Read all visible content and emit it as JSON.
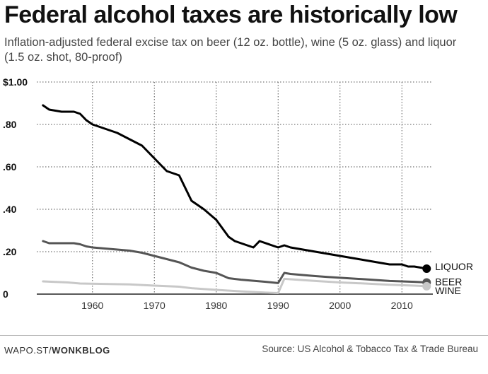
{
  "header": {
    "title": "Federal alcohol taxes are historically low",
    "subtitle": "Inflation-adjusted federal excise tax on beer (12 oz. bottle), wine (5 oz. glass) and liquor (1.5 oz. shot, 80-proof)"
  },
  "footer": {
    "credit_prefix": "WAPO.ST/",
    "credit_brand": "WONKBLOG",
    "source": "Source: US Alcohol & Tobacco Tax & Trade Bureau"
  },
  "chart_data": {
    "type": "line",
    "title": "Federal alcohol taxes are historically low",
    "xlabel": "",
    "ylabel": "",
    "xlim": [
      1951,
      2015
    ],
    "ylim": [
      0,
      1.0
    ],
    "grid": true,
    "x_ticks": [
      1960,
      1970,
      1980,
      1990,
      2000,
      2010
    ],
    "x_tick_labels": [
      "1960",
      "1970",
      "1980",
      "1990",
      "2000",
      "2010"
    ],
    "y_ticks": [
      0,
      0.2,
      0.4,
      0.6,
      0.8,
      1.0
    ],
    "y_tick_labels": [
      "0",
      ".20",
      ".40",
      ".60",
      ".80",
      "$1.00"
    ],
    "legend": "direct labels at line ends (right)",
    "series": [
      {
        "name": "LIQUOR",
        "color": "#000000",
        "x": [
          1952,
          1953,
          1955,
          1957,
          1958,
          1959,
          1960,
          1962,
          1964,
          1966,
          1968,
          1970,
          1972,
          1973,
          1974,
          1976,
          1978,
          1980,
          1982,
          1983,
          1985,
          1986,
          1987,
          1990,
          1991,
          1992,
          1994,
          1996,
          1998,
          2000,
          2002,
          2004,
          2006,
          2008,
          2010,
          2011,
          2012,
          2014
        ],
        "y": [
          0.89,
          0.87,
          0.86,
          0.86,
          0.85,
          0.82,
          0.8,
          0.78,
          0.76,
          0.73,
          0.7,
          0.64,
          0.58,
          0.57,
          0.56,
          0.44,
          0.4,
          0.35,
          0.27,
          0.25,
          0.23,
          0.22,
          0.25,
          0.22,
          0.23,
          0.22,
          0.21,
          0.2,
          0.19,
          0.18,
          0.17,
          0.16,
          0.15,
          0.14,
          0.14,
          0.13,
          0.13,
          0.12
        ]
      },
      {
        "name": "BEER",
        "color": "#555555",
        "x": [
          1952,
          1953,
          1955,
          1957,
          1958,
          1959,
          1960,
          1962,
          1966,
          1968,
          1970,
          1972,
          1974,
          1976,
          1978,
          1980,
          1982,
          1984,
          1986,
          1988,
          1990,
          1991,
          1992,
          1994,
          1996,
          1998,
          2000,
          2004,
          2008,
          2012,
          2014
        ],
        "y": [
          0.25,
          0.24,
          0.24,
          0.24,
          0.235,
          0.225,
          0.22,
          0.215,
          0.205,
          0.195,
          0.18,
          0.165,
          0.15,
          0.125,
          0.11,
          0.1,
          0.075,
          0.068,
          0.063,
          0.058,
          0.052,
          0.1,
          0.095,
          0.09,
          0.085,
          0.081,
          0.077,
          0.07,
          0.062,
          0.058,
          0.055
        ]
      },
      {
        "name": "WINE",
        "color": "#c8c8c8",
        "x": [
          1952,
          1956,
          1958,
          1962,
          1966,
          1968,
          1970,
          1974,
          1976,
          1980,
          1984,
          1988,
          1990,
          1991,
          1992,
          1996,
          2000,
          2004,
          2008,
          2012,
          2014
        ],
        "y": [
          0.06,
          0.055,
          0.05,
          0.048,
          0.046,
          0.043,
          0.04,
          0.035,
          0.028,
          0.02,
          0.013,
          0.007,
          0.005,
          0.072,
          0.07,
          0.062,
          0.055,
          0.05,
          0.044,
          0.04,
          0.037
        ]
      }
    ]
  }
}
